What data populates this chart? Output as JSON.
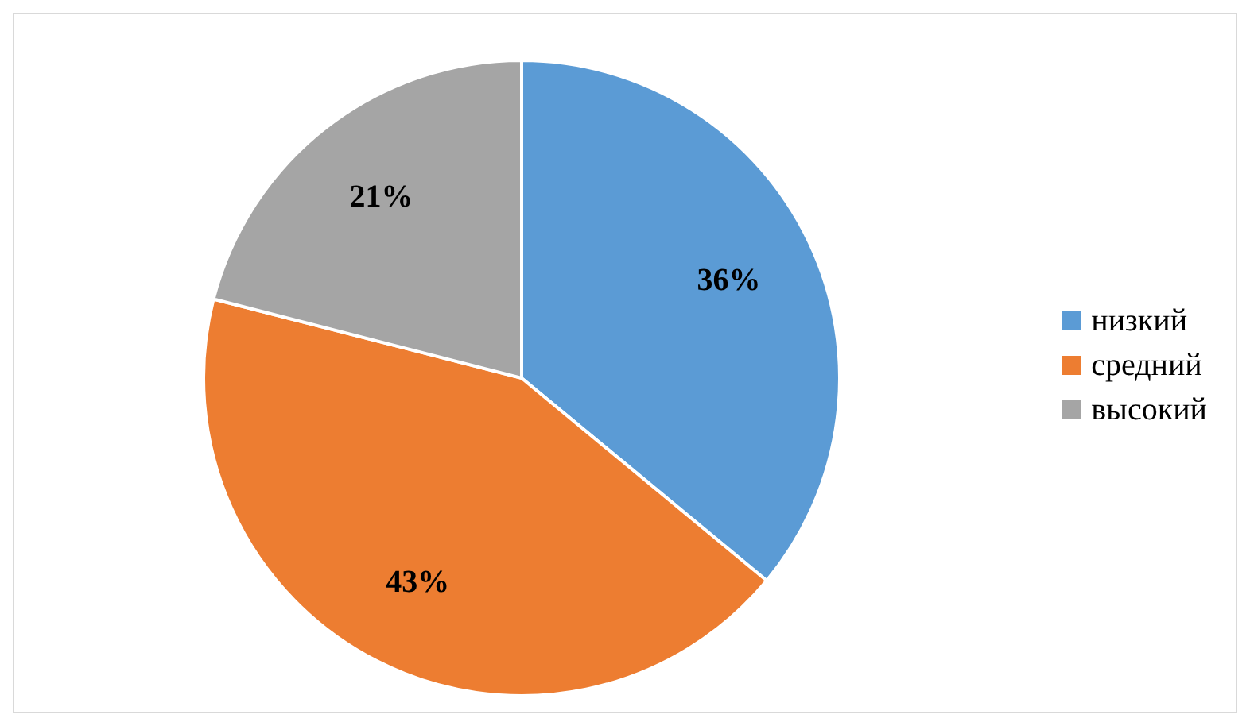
{
  "chart_data": {
    "type": "pie",
    "categories": [
      "низкий",
      "средний",
      "высокий"
    ],
    "values": [
      36,
      43,
      21
    ],
    "colors": [
      "#5b9bd5",
      "#ed7d31",
      "#a5a5a5"
    ],
    "value_labels": [
      "36%",
      "43%",
      "21%"
    ],
    "legend": "right"
  }
}
